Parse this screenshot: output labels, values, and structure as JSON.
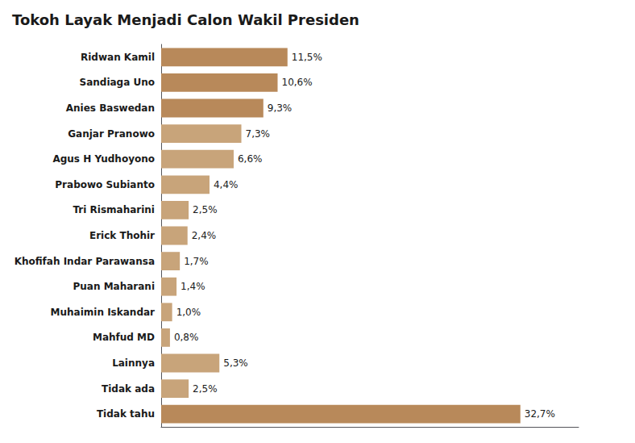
{
  "chart_data": {
    "type": "bar",
    "title": "Tokoh Layak Menjadi Calon Wakil Presiden",
    "orientation": "horizontal",
    "categories": [
      "Ridwan Kamil",
      "Sandiaga Uno",
      "Anies Baswedan",
      "Ganjar Pranowo",
      "Agus H Yudhoyono",
      "Prabowo Subianto",
      "Tri Rismaharini",
      "Erick Thohir",
      "Khofifah Indar Parawansa",
      "Puan Maharani",
      "Muhaimin Iskandar",
      "Mahfud MD",
      "Lainnya",
      "Tidak ada",
      "Tidak tahu"
    ],
    "values": [
      11.5,
      10.6,
      9.3,
      7.3,
      6.6,
      4.4,
      2.5,
      2.4,
      1.7,
      1.4,
      1.0,
      0.8,
      5.3,
      2.5,
      32.7
    ],
    "value_labels": [
      "11,5%",
      "10,6%",
      "9,3%",
      "7,3%",
      "6,6%",
      "4,4%",
      "2,5%",
      "2,4%",
      "1,7%",
      "1,4%",
      "1,0%",
      "0,8%",
      "5,3%",
      "2,5%",
      "32,7%"
    ],
    "colors": [
      "#B8895A",
      "#B8895A",
      "#B8895A",
      "#C8A47A",
      "#C8A47A",
      "#C8A47A",
      "#C8A47A",
      "#C8A47A",
      "#C8A47A",
      "#C8A47A",
      "#C8A47A",
      "#C8A47A",
      "#C8A47A",
      "#C8A47A",
      "#B8895A"
    ],
    "xlim": [
      0,
      38
    ],
    "data_labels": true,
    "tick_labels": "y",
    "grid": false
  }
}
